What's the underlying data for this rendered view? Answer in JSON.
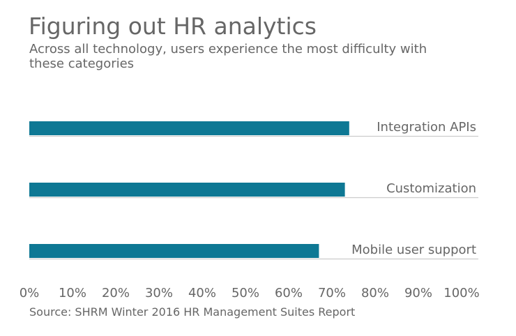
{
  "chart_data": {
    "type": "bar",
    "orientation": "horizontal",
    "title": "Figuring out HR analytics",
    "subtitle": "Across all technology, users experience the most difficulty with these categories",
    "categories": [
      "Integration APIs",
      "Customization",
      "Mobile user support"
    ],
    "values": [
      74,
      73,
      67
    ],
    "unit": "%",
    "xlim": [
      0,
      100
    ],
    "xticks": [
      "0%",
      "10%",
      "20%",
      "30%",
      "40%",
      "50%",
      "60%",
      "70%",
      "80%",
      "90%",
      "100%"
    ],
    "grid": false,
    "source": "Source: SHRM Winter 2016 HR Management Suites Report",
    "colors": {
      "bar": "#0e7894",
      "baseline": "#cccccc",
      "text": "#666666"
    }
  }
}
